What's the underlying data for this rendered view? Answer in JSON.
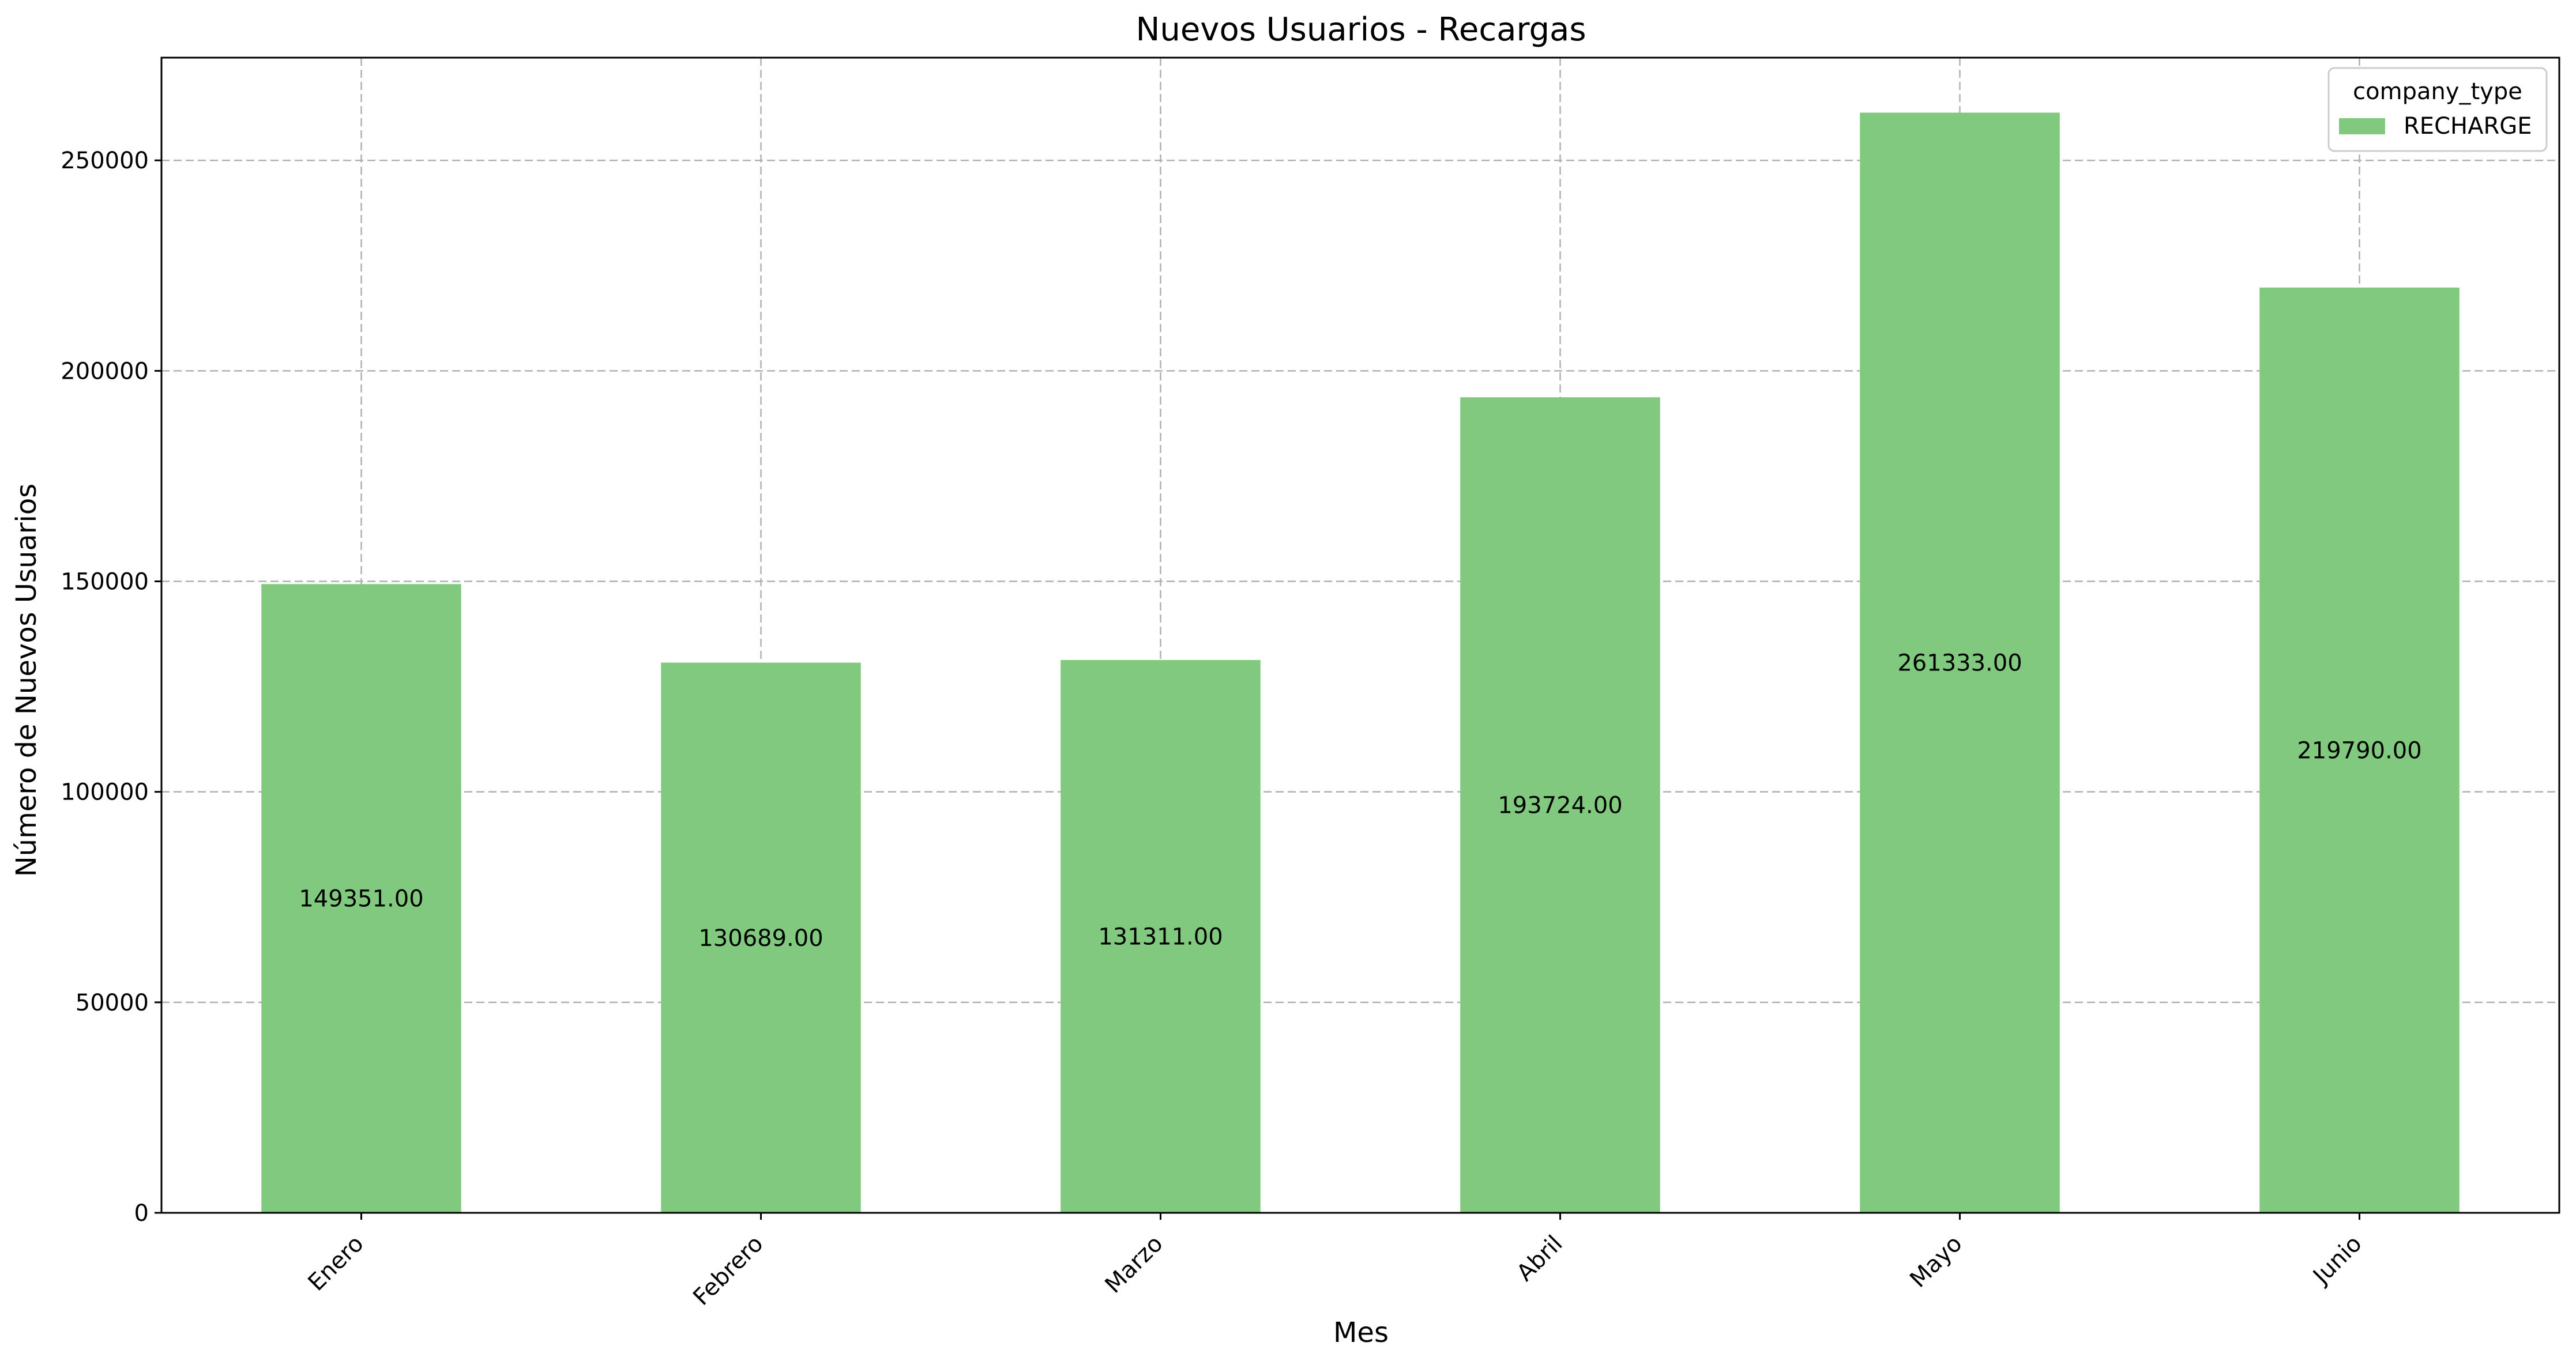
{
  "chart_data": {
    "type": "bar",
    "title": "Nuevos Usuarios - Recargas",
    "xlabel": "Mes",
    "ylabel": "Número de Nuevos Usuarios",
    "categories": [
      "Enero",
      "Febrero",
      "Marzo",
      "Abril",
      "Mayo",
      "Junio"
    ],
    "series": [
      {
        "name": "RECHARGE",
        "values": [
          149351,
          130689,
          131311,
          193724,
          261333,
          219790
        ],
        "color": "#80c97f"
      }
    ],
    "data_labels": [
      "149351.00",
      "130689.00",
      "131311.00",
      "193724.00",
      "261333.00",
      "219790.00"
    ],
    "yticks": [
      0,
      50000,
      100000,
      150000,
      200000,
      250000
    ],
    "ytick_labels": [
      "0",
      "50000",
      "100000",
      "150000",
      "200000",
      "250000"
    ],
    "ylim": [
      0,
      274400
    ],
    "grid": true,
    "legend": {
      "title": "company_type",
      "placement": "top-right"
    }
  }
}
